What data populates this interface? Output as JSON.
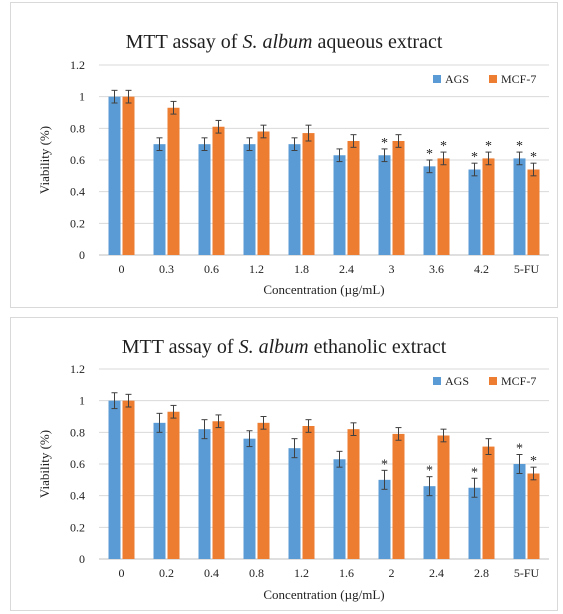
{
  "colors": {
    "AGS": "#5b9bd5",
    "MCF-7": "#ed7d31",
    "grid": "#d9d9d9",
    "error": "#404040"
  },
  "chart_data": [
    {
      "type": "bar",
      "title_parts": [
        "MTT assay of ",
        "S. album",
        " aqueous extract"
      ],
      "xlabel": "Concentration (µg/mL)",
      "ylabel": "Viability (%)",
      "ylim": [
        0,
        1.2
      ],
      "yticks": [
        "0",
        "0.2",
        "0.4",
        "0.6",
        "0.8",
        "1",
        "1.2"
      ],
      "grid": true,
      "legend_position": "top-right",
      "categories": [
        "0",
        "0.3",
        "0.6",
        "1.2",
        "1.8",
        "2.4",
        "3",
        "3.6",
        "4.2",
        "5-FU"
      ],
      "series": [
        {
          "name": "AGS",
          "values": [
            1.0,
            0.7,
            0.7,
            0.7,
            0.7,
            0.63,
            0.63,
            0.56,
            0.54,
            0.61
          ],
          "errors": [
            0.04,
            0.04,
            0.04,
            0.04,
            0.04,
            0.04,
            0.04,
            0.04,
            0.04,
            0.04
          ],
          "significant": [
            false,
            false,
            false,
            false,
            false,
            false,
            true,
            true,
            true,
            true
          ]
        },
        {
          "name": "MCF-7",
          "values": [
            1.0,
            0.93,
            0.81,
            0.78,
            0.77,
            0.72,
            0.72,
            0.61,
            0.61,
            0.54
          ],
          "errors": [
            0.04,
            0.04,
            0.04,
            0.04,
            0.05,
            0.04,
            0.04,
            0.04,
            0.04,
            0.04
          ],
          "significant": [
            false,
            false,
            false,
            false,
            false,
            false,
            false,
            true,
            true,
            true
          ]
        }
      ]
    },
    {
      "type": "bar",
      "title_parts": [
        "MTT assay of ",
        "S. album",
        " ethanolic extract"
      ],
      "xlabel": "Concentration (µg/mL)",
      "ylabel": "Viability (%)",
      "ylim": [
        0,
        1.2
      ],
      "yticks": [
        "0",
        "0.2",
        "0.4",
        "0.6",
        "0.8",
        "1",
        "1.2"
      ],
      "grid": true,
      "legend_position": "top-right",
      "categories": [
        "0",
        "0.2",
        "0.4",
        "0.8",
        "1.2",
        "1.6",
        "2",
        "2.4",
        "2.8",
        "5-FU"
      ],
      "series": [
        {
          "name": "AGS",
          "values": [
            1.0,
            0.86,
            0.82,
            0.76,
            0.7,
            0.63,
            0.5,
            0.46,
            0.45,
            0.6
          ],
          "errors": [
            0.05,
            0.06,
            0.06,
            0.05,
            0.06,
            0.05,
            0.06,
            0.06,
            0.06,
            0.06
          ],
          "significant": [
            false,
            false,
            false,
            false,
            false,
            false,
            true,
            true,
            true,
            true
          ]
        },
        {
          "name": "MCF-7",
          "values": [
            1.0,
            0.93,
            0.87,
            0.86,
            0.84,
            0.82,
            0.79,
            0.78,
            0.71,
            0.54
          ],
          "errors": [
            0.04,
            0.04,
            0.04,
            0.04,
            0.04,
            0.04,
            0.04,
            0.04,
            0.05,
            0.04
          ],
          "significant": [
            false,
            false,
            false,
            false,
            false,
            false,
            false,
            false,
            false,
            true
          ]
        }
      ]
    }
  ]
}
